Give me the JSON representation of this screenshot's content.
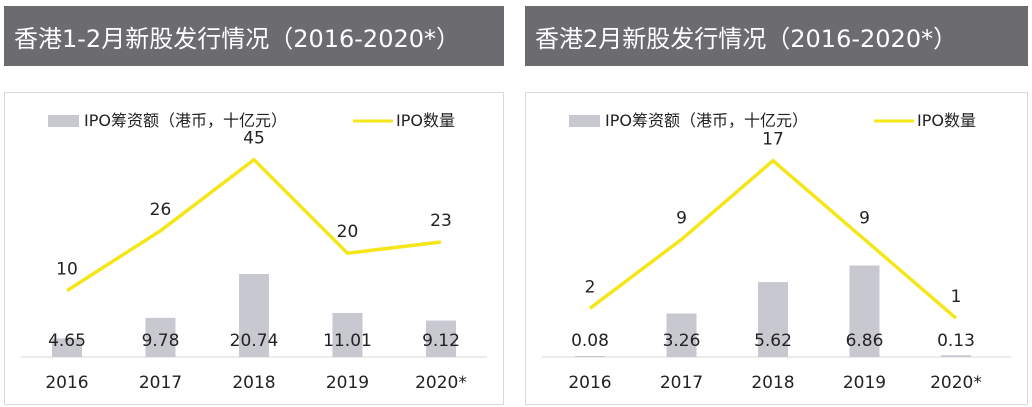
{
  "colors": {
    "header_bg": "#6b6b70",
    "bar": "#c8c8d0",
    "line": "#f5e61a",
    "text": "#222222"
  },
  "chart_data": [
    {
      "type": "bar+line",
      "title": "香港1-2月新股发行情况（2016-2020*）",
      "categories": [
        "2016",
        "2017",
        "2018",
        "2019",
        "2020*"
      ],
      "series": [
        {
          "name": "IPO筹资额（港币，十亿元）",
          "type": "bar",
          "values": [
            4.65,
            9.78,
            20.74,
            11.01,
            9.12
          ],
          "labels": [
            "4.65",
            "9.78",
            "20.74",
            "11.01",
            "9.12"
          ]
        },
        {
          "name": "IPO数量",
          "type": "line",
          "values": [
            10,
            26,
            45,
            20,
            23
          ],
          "labels": [
            "10",
            "26",
            "45",
            "20",
            "23"
          ]
        }
      ],
      "legend": "top",
      "grid": false
    },
    {
      "type": "bar+line",
      "title": "香港2月新股发行情况（2016-2020*）",
      "categories": [
        "2016",
        "2017",
        "2018",
        "2019",
        "2020*"
      ],
      "series": [
        {
          "name": "IPO筹资额（港币，十亿元）",
          "type": "bar",
          "values": [
            0.08,
            3.26,
            5.62,
            6.86,
            0.13
          ],
          "labels": [
            "0.08",
            "3.26",
            "5.62",
            "6.86",
            "0.13"
          ]
        },
        {
          "name": "IPO数量",
          "type": "line",
          "values": [
            2,
            9,
            17,
            9,
            1
          ],
          "labels": [
            "2",
            "9",
            "17",
            "9",
            "1"
          ]
        }
      ],
      "legend": "top",
      "grid": false
    }
  ]
}
